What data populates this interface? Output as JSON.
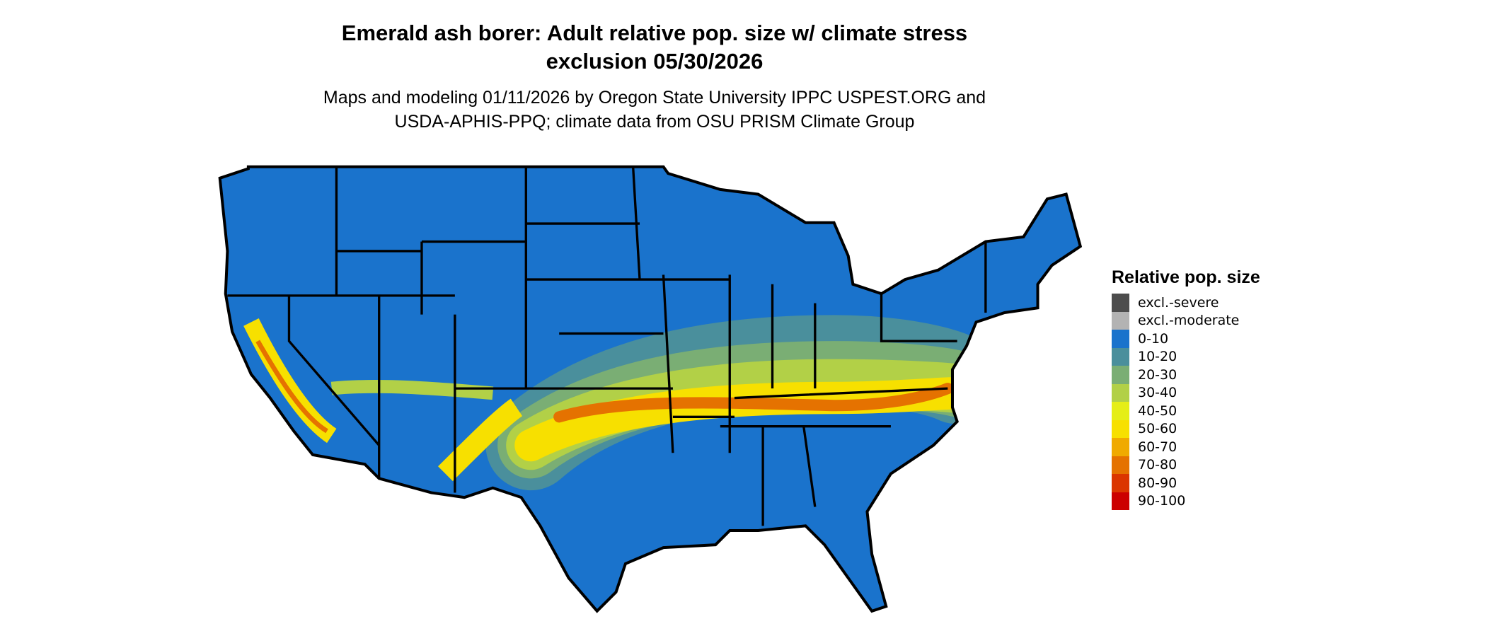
{
  "title_line1": "Emerald ash borer: Adult relative pop. size w/ climate stress",
  "title_line2": "exclusion 05/30/2026",
  "subtitle_line1": "Maps and modeling 01/11/2026 by Oregon State University IPPC USPEST.ORG and",
  "subtitle_line2": "USDA-APHIS-PPQ; climate data from OSU PRISM Climate Group",
  "map": {
    "region": "Contiguous United States",
    "dominant_class": "0-10",
    "high_band": "Central latitude belt (Kansas/Oklahoma to Virginia/Carolinas, plus California and Arizona)"
  },
  "legend": {
    "title": "Relative pop. size",
    "items": [
      {
        "label": "excl.-severe",
        "color": "#4d4d4d"
      },
      {
        "label": "excl.-moderate",
        "color": "#b3b3b3"
      },
      {
        "label": "0-10",
        "color": "#1a73cc"
      },
      {
        "label": "10-20",
        "color": "#4a8f9c"
      },
      {
        "label": "20-30",
        "color": "#7aae74"
      },
      {
        "label": "30-40",
        "color": "#b2d047"
      },
      {
        "label": "40-50",
        "color": "#e5ee17"
      },
      {
        "label": "50-60",
        "color": "#f7e000"
      },
      {
        "label": "60-70",
        "color": "#f0aa00"
      },
      {
        "label": "70-80",
        "color": "#e57200"
      },
      {
        "label": "80-90",
        "color": "#db3600"
      },
      {
        "label": "90-100",
        "color": "#cc0000"
      }
    ]
  }
}
